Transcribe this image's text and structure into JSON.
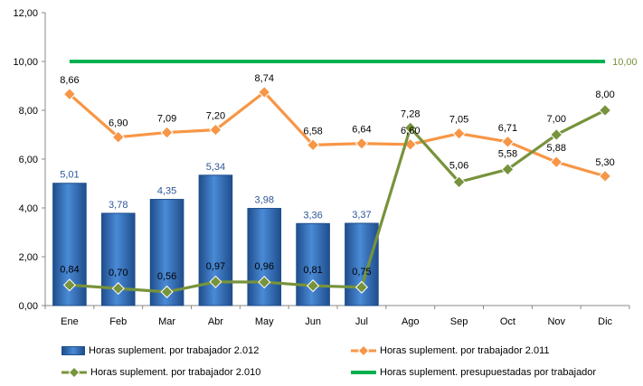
{
  "colors": {
    "bars": "#2E6DB8",
    "bars_light": "#5C9BE0",
    "bar_label": "#2F5597",
    "line_2011": "#F79646",
    "line_2010": "#77933C",
    "line_budget": "#00B050",
    "budget_label": "#77933C"
  },
  "chart_data": {
    "type": "bar",
    "categories": [
      "Ene",
      "Feb",
      "Mar",
      "Abr",
      "May",
      "Jun",
      "Jul",
      "Ago",
      "Sep",
      "Oct",
      "Nov",
      "Dic"
    ],
    "y_ticks": [
      "0,00",
      "2,00",
      "4,00",
      "6,00",
      "8,00",
      "10,00",
      "12,00"
    ],
    "ylim": [
      0,
      12
    ],
    "grid": false,
    "legend_position": "bottom",
    "series": [
      {
        "name": "Horas suplement. por trabajador 2.012",
        "kind": "bar",
        "values": [
          5.01,
          3.78,
          4.35,
          5.34,
          3.98,
          3.36,
          3.37,
          null,
          null,
          null,
          null,
          null
        ],
        "labels": [
          "5,01",
          "3,78",
          "4,35",
          "5,34",
          "3,98",
          "3,36",
          "3,37",
          "",
          "",
          "",
          "",
          ""
        ]
      },
      {
        "name": "Horas suplement. por trabajador 2.011",
        "kind": "line",
        "values": [
          8.66,
          6.9,
          7.09,
          7.2,
          8.74,
          6.58,
          6.64,
          6.6,
          7.05,
          6.71,
          5.88,
          5.3
        ],
        "labels": [
          "8,66",
          "6,90",
          "7,09",
          "7,20",
          "8,74",
          "6,58",
          "6,64",
          "6,60",
          "7,05",
          "6,71",
          "5,88",
          "5,30"
        ]
      },
      {
        "name": "Horas suplement. por trabajador 2.010",
        "kind": "line",
        "values": [
          0.84,
          0.7,
          0.56,
          0.97,
          0.96,
          0.81,
          0.75,
          7.28,
          5.06,
          5.58,
          7.0,
          8.0
        ],
        "labels": [
          "0,84",
          "0,70",
          "0,56",
          "0,97",
          "0,96",
          "0,81",
          "0,75",
          "7,28",
          "5,06",
          "5,58",
          "7,00",
          "8,00"
        ]
      },
      {
        "name": "Horas suplement. presupuestadas por trabajador",
        "kind": "line",
        "values": [
          10,
          10,
          10,
          10,
          10,
          10,
          10,
          10,
          10,
          10,
          10,
          10
        ],
        "end_label": "10,00"
      }
    ]
  }
}
